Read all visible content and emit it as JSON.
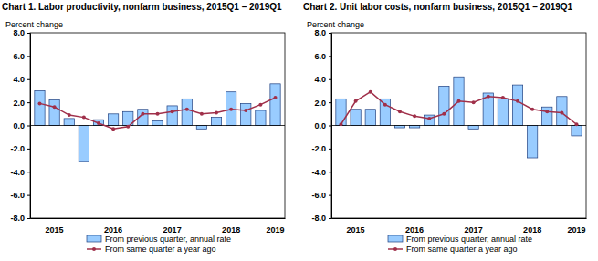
{
  "chart_data": [
    {
      "type": "bar",
      "title": "Chart 1. Labor productivity, nonfarm business, 2015Q1 – 2019Q1",
      "y_label": "Percent change",
      "categories": [
        null,
        "2015",
        null,
        null,
        null,
        "2016",
        null,
        null,
        null,
        "2017",
        null,
        null,
        null,
        "2018",
        null,
        null,
        "2019"
      ],
      "series": [
        {
          "name": "From previous quarter, annual rate",
          "type": "bar",
          "color": "#99ccff",
          "values": [
            3.0,
            2.2,
            0.6,
            -3.1,
            0.5,
            1.0,
            1.2,
            1.4,
            0.4,
            1.7,
            2.3,
            -0.3,
            0.7,
            2.9,
            1.9,
            1.3,
            3.6
          ]
        },
        {
          "name": "From same quarter a year ago",
          "type": "line",
          "color": "#a0304a",
          "marker": "circle",
          "values": [
            1.9,
            1.6,
            0.9,
            0.7,
            0.2,
            -0.3,
            -0.1,
            1.0,
            1.0,
            1.2,
            1.4,
            1.0,
            1.1,
            1.4,
            1.3,
            1.8,
            2.4
          ]
        }
      ],
      "ylim": [
        -8,
        8
      ],
      "yticks": [
        {
          "value": -8,
          "label": "-8.0"
        },
        {
          "value": -6,
          "label": "-6.0"
        },
        {
          "value": -4,
          "label": "-4.0"
        },
        {
          "value": -2,
          "label": "-2.0"
        },
        {
          "value": 0,
          "label": "0.0"
        },
        {
          "value": 2,
          "label": "2.0"
        },
        {
          "value": 4,
          "label": "4.0"
        },
        {
          "value": 6,
          "label": "6.0"
        },
        {
          "value": 8,
          "label": "8.0"
        }
      ],
      "grid": false,
      "legend": "bottom"
    },
    {
      "type": "bar",
      "title": "Chart 2. Unit labor costs, nonfarm business, 2015Q1 – 2019Q1",
      "y_label": "Percent change",
      "categories": [
        null,
        "2015",
        null,
        null,
        null,
        "2016",
        null,
        null,
        null,
        "2017",
        null,
        null,
        null,
        "2018",
        null,
        null,
        "2019"
      ],
      "series": [
        {
          "name": "From previous quarter, annual rate",
          "type": "bar",
          "color": "#99ccff",
          "values": [
            2.3,
            1.4,
            1.4,
            2.3,
            -0.2,
            -0.2,
            0.9,
            3.4,
            4.2,
            -0.3,
            2.8,
            2.3,
            3.5,
            -2.8,
            1.6,
            2.5,
            -0.9
          ]
        },
        {
          "name": "From same quarter a year ago",
          "type": "line",
          "color": "#a0304a",
          "marker": "circle",
          "values": [
            0.1,
            2.1,
            2.9,
            1.8,
            1.2,
            0.8,
            0.6,
            1.0,
            2.1,
            2.0,
            2.5,
            2.4,
            2.1,
            1.4,
            1.2,
            1.1,
            0.1
          ]
        }
      ],
      "ylim": [
        -8,
        8
      ],
      "yticks": [
        {
          "value": -8,
          "label": "-8.0"
        },
        {
          "value": -6,
          "label": "-6.0"
        },
        {
          "value": -4,
          "label": "-4.0"
        },
        {
          "value": -2,
          "label": "-2.0"
        },
        {
          "value": 0,
          "label": "0.0"
        },
        {
          "value": 2,
          "label": "2.0"
        },
        {
          "value": 4,
          "label": "4.0"
        },
        {
          "value": 6,
          "label": "6.0"
        },
        {
          "value": 8,
          "label": "8.0"
        }
      ],
      "grid": false,
      "legend": "bottom"
    }
  ]
}
